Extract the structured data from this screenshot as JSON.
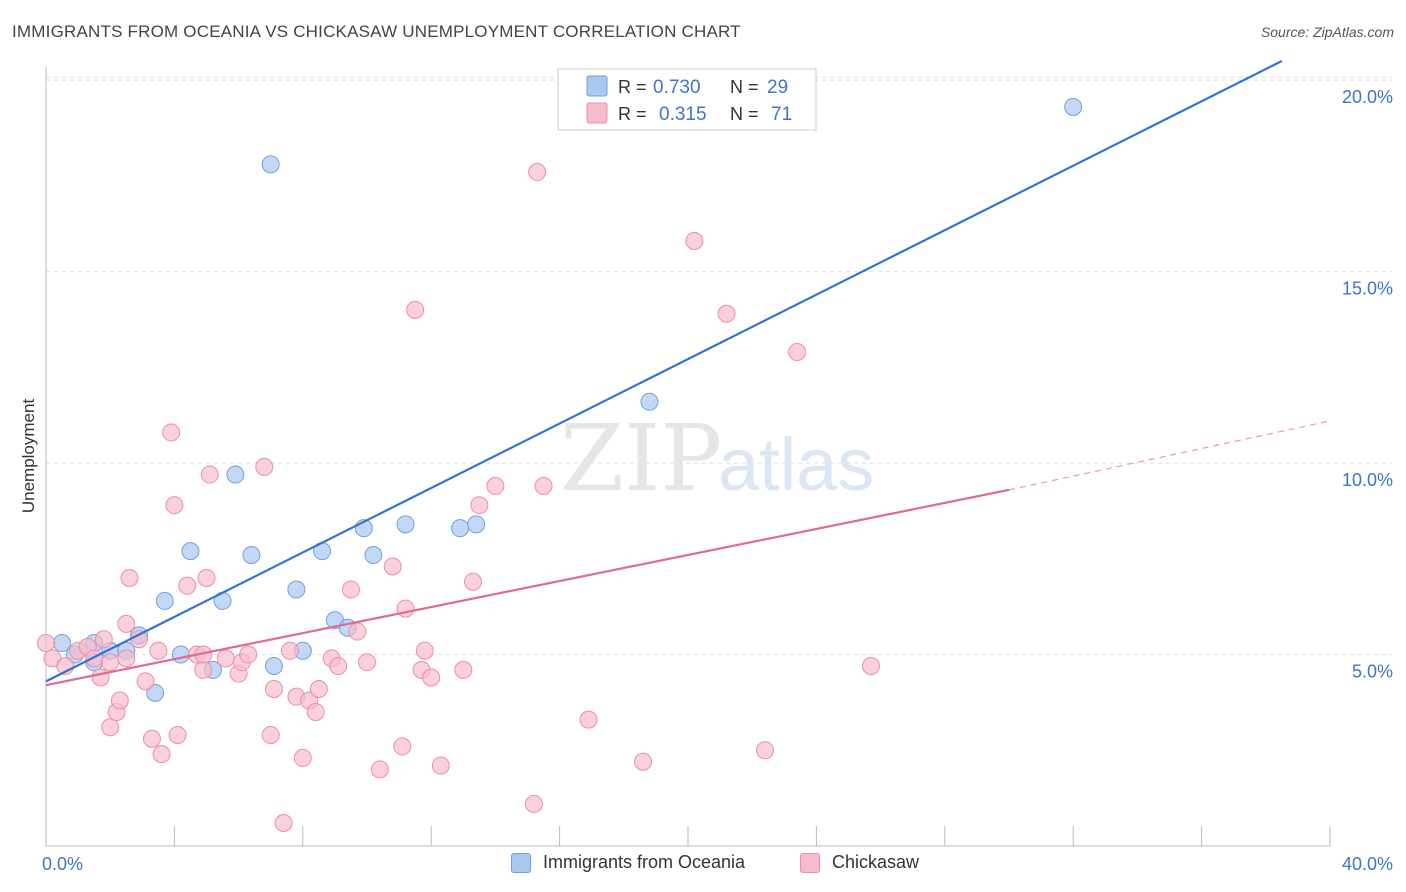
{
  "header": {
    "title": "IMMIGRANTS FROM OCEANIA VS CHICKASAW UNEMPLOYMENT CORRELATION CHART",
    "source": "Source: ZipAtlas.com"
  },
  "watermark": {
    "zip": "ZIP",
    "atlas": "atlas"
  },
  "stats_legend": {
    "rows": [
      {
        "r_label": "R =",
        "r_value": "0.730",
        "n_label": "N =",
        "n_value": "29"
      },
      {
        "r_label": "R =",
        "r_value": "0.315",
        "n_label": "N =",
        "n_value": "71"
      }
    ]
  },
  "colors": {
    "blue_fill": "#a9c8f0",
    "blue_stroke": "#6fa0e0",
    "blue_line": "#2e72d2",
    "pink_fill": "#f6bccd",
    "pink_stroke": "#ea8fab",
    "pink_line": "#e0699a",
    "axis_text": "#3f74c9",
    "grid": "#dddddd"
  },
  "chart_data": {
    "type": "scatter",
    "title": "IMMIGRANTS FROM OCEANIA VS CHICKASAW UNEMPLOYMENT CORRELATION CHART",
    "ylabel": "Unemployment",
    "xlabel": "",
    "xlim": [
      0,
      40
    ],
    "ylim": [
      0,
      20.5
    ],
    "x_tick_labels": [
      "0.0%",
      "40.0%"
    ],
    "y_ticks": [
      5,
      10,
      15,
      20
    ],
    "y_tick_labels": [
      "5.0%",
      "10.0%",
      "15.0%",
      "20.0%"
    ],
    "grid": true,
    "legend_position": "top-center",
    "series": [
      {
        "name": "Immigrants from Oceania",
        "color": "#a9c8f0",
        "r": 0.73,
        "n": 29,
        "trend": {
          "x": [
            0,
            38.5
          ],
          "y": [
            4.3,
            20.5
          ],
          "dashed_to": null
        },
        "points": [
          [
            0.5,
            5.3
          ],
          [
            0.9,
            5.0
          ],
          [
            1.5,
            4.8
          ],
          [
            1.5,
            5.3
          ],
          [
            2.0,
            5.1
          ],
          [
            2.5,
            5.1
          ],
          [
            2.9,
            5.5
          ],
          [
            3.4,
            4.0
          ],
          [
            3.7,
            6.4
          ],
          [
            4.2,
            5.0
          ],
          [
            4.5,
            7.7
          ],
          [
            5.2,
            4.6
          ],
          [
            5.5,
            6.4
          ],
          [
            5.9,
            9.7
          ],
          [
            6.4,
            7.6
          ],
          [
            7.0,
            17.8
          ],
          [
            7.1,
            4.7
          ],
          [
            7.8,
            6.7
          ],
          [
            8.0,
            5.1
          ],
          [
            8.6,
            7.7
          ],
          [
            9.0,
            5.9
          ],
          [
            9.4,
            5.7
          ],
          [
            9.9,
            8.3
          ],
          [
            10.2,
            7.6
          ],
          [
            11.2,
            8.4
          ],
          [
            12.9,
            8.3
          ],
          [
            13.4,
            8.4
          ],
          [
            18.8,
            11.6
          ],
          [
            32.0,
            19.3
          ]
        ]
      },
      {
        "name": "Chickasaw",
        "color": "#f6bccd",
        "r": 0.315,
        "n": 71,
        "trend": {
          "x": [
            0,
            30.0
          ],
          "y": [
            4.2,
            9.3
          ],
          "dashed_to": [
            40.0,
            11.1
          ]
        },
        "points": [
          [
            0.0,
            5.3
          ],
          [
            0.2,
            4.9
          ],
          [
            0.6,
            4.7
          ],
          [
            1.0,
            5.1
          ],
          [
            1.3,
            5.2
          ],
          [
            1.5,
            4.9
          ],
          [
            2.0,
            4.8
          ],
          [
            2.5,
            4.9
          ],
          [
            1.8,
            5.4
          ],
          [
            1.7,
            4.4
          ],
          [
            2.0,
            3.1
          ],
          [
            2.2,
            3.5
          ],
          [
            2.3,
            3.8
          ],
          [
            2.5,
            5.8
          ],
          [
            2.6,
            7.0
          ],
          [
            2.9,
            5.4
          ],
          [
            3.1,
            4.3
          ],
          [
            3.3,
            2.8
          ],
          [
            3.6,
            2.4
          ],
          [
            3.5,
            5.1
          ],
          [
            3.9,
            10.8
          ],
          [
            4.0,
            8.9
          ],
          [
            4.1,
            2.9
          ],
          [
            4.4,
            6.8
          ],
          [
            4.7,
            5.0
          ],
          [
            4.9,
            4.6
          ],
          [
            4.9,
            5.0
          ],
          [
            5.0,
            7.0
          ],
          [
            5.1,
            9.7
          ],
          [
            5.6,
            4.9
          ],
          [
            6.0,
            4.5
          ],
          [
            6.1,
            4.8
          ],
          [
            6.3,
            5.0
          ],
          [
            6.8,
            9.9
          ],
          [
            7.0,
            2.9
          ],
          [
            7.1,
            4.1
          ],
          [
            7.4,
            0.6
          ],
          [
            7.6,
            5.1
          ],
          [
            7.8,
            3.9
          ],
          [
            8.0,
            2.3
          ],
          [
            8.2,
            3.8
          ],
          [
            8.4,
            3.5
          ],
          [
            8.5,
            4.1
          ],
          [
            8.9,
            4.9
          ],
          [
            9.1,
            4.7
          ],
          [
            9.5,
            6.7
          ],
          [
            9.7,
            5.6
          ],
          [
            10.0,
            4.8
          ],
          [
            10.4,
            2.0
          ],
          [
            10.8,
            7.3
          ],
          [
            11.1,
            2.6
          ],
          [
            11.2,
            6.2
          ],
          [
            11.5,
            14.0
          ],
          [
            11.7,
            4.6
          ],
          [
            11.8,
            5.1
          ],
          [
            12.0,
            4.4
          ],
          [
            12.3,
            2.1
          ],
          [
            13.0,
            4.6
          ],
          [
            13.3,
            6.9
          ],
          [
            13.5,
            8.9
          ],
          [
            14.0,
            9.4
          ],
          [
            15.2,
            1.1
          ],
          [
            15.3,
            17.6
          ],
          [
            15.5,
            9.4
          ],
          [
            16.9,
            3.3
          ],
          [
            18.6,
            2.2
          ],
          [
            20.2,
            15.8
          ],
          [
            21.2,
            13.9
          ],
          [
            22.4,
            2.5
          ],
          [
            23.4,
            12.9
          ],
          [
            25.7,
            4.7
          ]
        ]
      }
    ]
  },
  "bottom_legend": {
    "items": [
      {
        "label": "Immigrants from Oceania"
      },
      {
        "label": "Chickasaw"
      }
    ]
  }
}
